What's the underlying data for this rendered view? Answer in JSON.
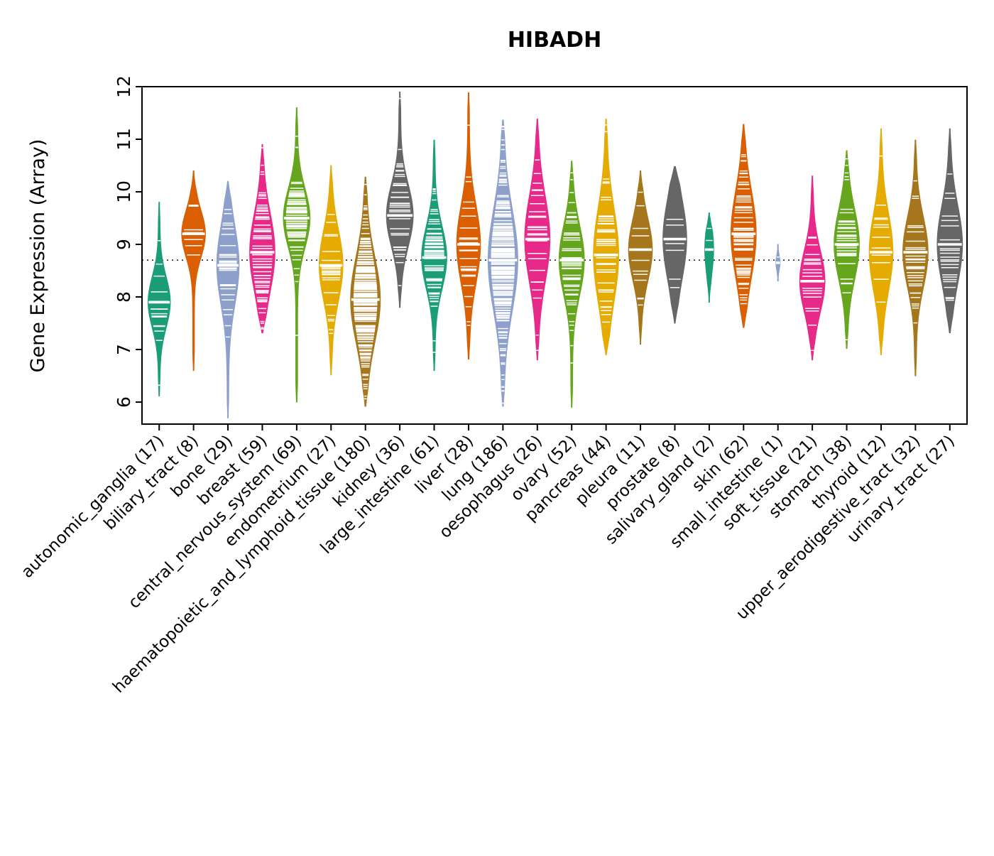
{
  "page": {
    "title": "HIBADH"
  },
  "chart_data": {
    "type": "violin",
    "title": "HIBADH",
    "ylabel": "Gene Expression (Array)",
    "yticks": [
      "6",
      "7",
      "8",
      "9",
      "10",
      "11",
      "12"
    ],
    "ylim": [
      5.6,
      12
    ],
    "reference_line": 8.7,
    "legend": "none",
    "grid": "off",
    "series": [
      {
        "name": "autonomic_ganglia",
        "label": "autonomic_ganglia (17)",
        "n": 17,
        "color": "#1B9E77",
        "min": 6.1,
        "q1": 7.5,
        "median": 7.9,
        "q3": 8.15,
        "max": 9.8,
        "width": 0.75
      },
      {
        "name": "biliary_tract",
        "label": "biliary_tract (8)",
        "n": 8,
        "color": "#D95F02",
        "min": 6.6,
        "q1": 8.9,
        "median": 9.2,
        "q3": 9.5,
        "max": 10.4,
        "width": 0.8
      },
      {
        "name": "bone",
        "label": "bone (29)",
        "n": 29,
        "color": "#8DA0CB",
        "min": 5.7,
        "q1": 7.9,
        "median": 8.6,
        "q3": 8.9,
        "max": 10.2,
        "width": 0.75
      },
      {
        "name": "breast",
        "label": "breast (59)",
        "n": 59,
        "color": "#E7298A",
        "min": 7.3,
        "q1": 8.4,
        "median": 8.85,
        "q3": 9.4,
        "max": 10.9,
        "width": 0.85
      },
      {
        "name": "central_nervous_system",
        "label": "central_nervous_system (69)",
        "n": 69,
        "color": "#66A61E",
        "min": 6.0,
        "q1": 9.1,
        "median": 9.5,
        "q3": 9.85,
        "max": 11.6,
        "width": 0.9
      },
      {
        "name": "endometrium",
        "label": "endometrium (27)",
        "n": 27,
        "color": "#E6AB02",
        "min": 6.5,
        "q1": 8.2,
        "median": 8.6,
        "q3": 9.1,
        "max": 10.5,
        "width": 0.8
      },
      {
        "name": "haematopoietic_and_lymphoid_tissue",
        "label": "haematopoietic_and_lymphoid_tissue (180)",
        "n": 180,
        "color": "#A6761D",
        "min": 5.9,
        "q1": 7.5,
        "median": 7.95,
        "q3": 8.6,
        "max": 10.3,
        "width": 1.0
      },
      {
        "name": "kidney",
        "label": "kidney (36)",
        "n": 36,
        "color": "#666666",
        "min": 7.8,
        "q1": 9.2,
        "median": 9.55,
        "q3": 10.0,
        "max": 11.9,
        "width": 0.9
      },
      {
        "name": "large_intestine",
        "label": "large_intestine (61)",
        "n": 61,
        "color": "#1B9E77",
        "min": 6.6,
        "q1": 8.4,
        "median": 8.75,
        "q3": 9.2,
        "max": 11.0,
        "width": 0.85
      },
      {
        "name": "liver",
        "label": "liver (28)",
        "n": 28,
        "color": "#D95F02",
        "min": 6.8,
        "q1": 8.6,
        "median": 9.0,
        "q3": 9.6,
        "max": 11.9,
        "width": 0.8
      },
      {
        "name": "lung",
        "label": "lung (186)",
        "n": 186,
        "color": "#8DA0CB",
        "min": 5.9,
        "q1": 8.1,
        "median": 8.7,
        "q3": 9.4,
        "max": 11.4,
        "width": 1.0
      },
      {
        "name": "oesophagus",
        "label": "oesophagus (26)",
        "n": 26,
        "color": "#E7298A",
        "min": 6.8,
        "q1": 8.6,
        "median": 9.1,
        "q3": 9.7,
        "max": 11.4,
        "width": 0.85
      },
      {
        "name": "ovary",
        "label": "ovary (52)",
        "n": 52,
        "color": "#66A61E",
        "min": 5.9,
        "q1": 8.3,
        "median": 8.7,
        "q3": 9.2,
        "max": 10.6,
        "width": 0.85
      },
      {
        "name": "pancreas",
        "label": "pancreas (44)",
        "n": 44,
        "color": "#E6AB02",
        "min": 6.9,
        "q1": 8.2,
        "median": 8.8,
        "q3": 9.4,
        "max": 11.4,
        "width": 0.85
      },
      {
        "name": "pleura",
        "label": "pleura (11)",
        "n": 11,
        "color": "#A6761D",
        "min": 7.1,
        "q1": 8.6,
        "median": 8.9,
        "q3": 9.4,
        "max": 10.4,
        "width": 0.8
      },
      {
        "name": "prostate",
        "label": "prostate (8)",
        "n": 8,
        "color": "#666666",
        "min": 7.5,
        "q1": 8.8,
        "median": 9.1,
        "q3": 9.8,
        "max": 10.5,
        "width": 0.8
      },
      {
        "name": "salivary_gland",
        "label": "salivary_gland (2)",
        "n": 2,
        "color": "#1B9E77",
        "min": 7.9,
        "q1": 8.6,
        "median": 8.9,
        "q3": 9.2,
        "max": 9.6,
        "width": 0.3
      },
      {
        "name": "skin",
        "label": "skin (62)",
        "n": 62,
        "color": "#D95F02",
        "min": 7.4,
        "q1": 8.6,
        "median": 9.2,
        "q3": 9.7,
        "max": 11.3,
        "width": 0.85
      },
      {
        "name": "small_intestine",
        "label": "small_intestine (1)",
        "n": 1,
        "color": "#8DA0CB",
        "min": 8.3,
        "q1": 8.55,
        "median": 8.65,
        "q3": 8.8,
        "max": 9.0,
        "width": 0.15
      },
      {
        "name": "soft_tissue",
        "label": "soft_tissue (21)",
        "n": 21,
        "color": "#E7298A",
        "min": 6.8,
        "q1": 7.9,
        "median": 8.3,
        "q3": 8.7,
        "max": 10.3,
        "width": 0.85
      },
      {
        "name": "stomach",
        "label": "stomach (38)",
        "n": 38,
        "color": "#66A61E",
        "min": 7.0,
        "q1": 8.7,
        "median": 9.0,
        "q3": 9.6,
        "max": 10.8,
        "width": 0.85
      },
      {
        "name": "thyroid",
        "label": "thyroid (12)",
        "n": 12,
        "color": "#E6AB02",
        "min": 6.9,
        "q1": 8.4,
        "median": 8.85,
        "q3": 9.4,
        "max": 11.2,
        "width": 0.8
      },
      {
        "name": "upper_aerodigestive_tract",
        "label": "upper_aerodigestive_tract (32)",
        "n": 32,
        "color": "#A6761D",
        "min": 6.5,
        "q1": 8.4,
        "median": 8.85,
        "q3": 9.3,
        "max": 11.0,
        "width": 0.85
      },
      {
        "name": "urinary_tract",
        "label": "urinary_tract (27)",
        "n": 27,
        "color": "#666666",
        "min": 7.3,
        "q1": 8.5,
        "median": 9.0,
        "q3": 9.5,
        "max": 11.2,
        "width": 0.85
      }
    ]
  }
}
